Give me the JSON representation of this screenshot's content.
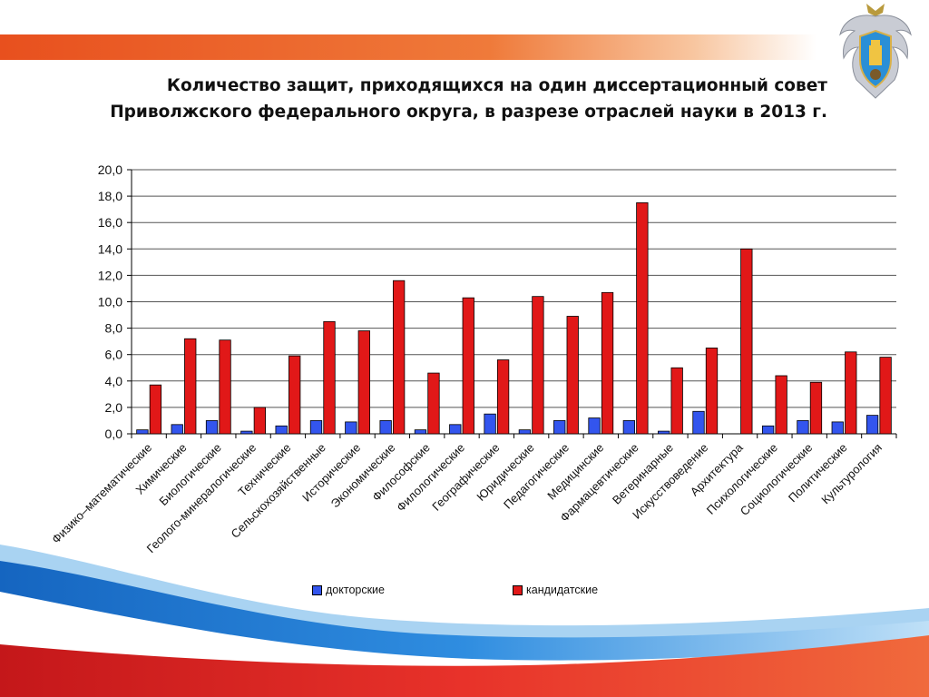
{
  "slide": {
    "title_line1": "Количество защит, приходящихся на один диссертационный совет",
    "title_line2": "Приволжского федерального округа, в разрезе отраслей науки в 2013 г."
  },
  "colors": {
    "stripe_orange": "#e8501e",
    "doctoral": "#3355ee",
    "candidate": "#e11818",
    "wave_blue": "#1e7dd0",
    "wave_red": "#e0201a"
  },
  "chart_data": {
    "type": "bar",
    "categories": [
      "Физико–математические",
      "Химические",
      "Биологические",
      "Геолого-минералогические",
      "Технические",
      "Сельскохозяйственные",
      "Исторические",
      "Экономические",
      "Философские",
      "Филологические",
      "Географические",
      "Юридические",
      "Педагогические",
      "Медицинские",
      "Фармацевтические",
      "Ветеринарные",
      "Искусствоведение",
      "Архитектура",
      "Психологические",
      "Социологические",
      "Политические",
      "Культурология"
    ],
    "series": [
      {
        "name": "докторские",
        "values": [
          0.3,
          0.7,
          1.0,
          0.2,
          0.6,
          1.0,
          0.9,
          1.0,
          0.3,
          0.7,
          1.5,
          0.3,
          1.0,
          1.2,
          1.0,
          0.2,
          1.7,
          0.0,
          0.6,
          1.0,
          0.9,
          1.4
        ]
      },
      {
        "name": "кандидатские",
        "values": [
          3.7,
          7.2,
          7.1,
          2.0,
          5.9,
          8.5,
          7.8,
          11.6,
          4.6,
          10.3,
          5.6,
          10.4,
          8.9,
          10.7,
          17.5,
          5.0,
          6.5,
          14.0,
          4.4,
          3.9,
          6.2,
          5.8
        ]
      }
    ],
    "ylim": [
      0,
      20
    ],
    "yticks": [
      "0,0",
      "2,0",
      "4,0",
      "6,0",
      "8,0",
      "10,0",
      "12,0",
      "14,0",
      "16,0",
      "18,0",
      "20,0"
    ],
    "grid": true,
    "legend_position": "bottom"
  }
}
